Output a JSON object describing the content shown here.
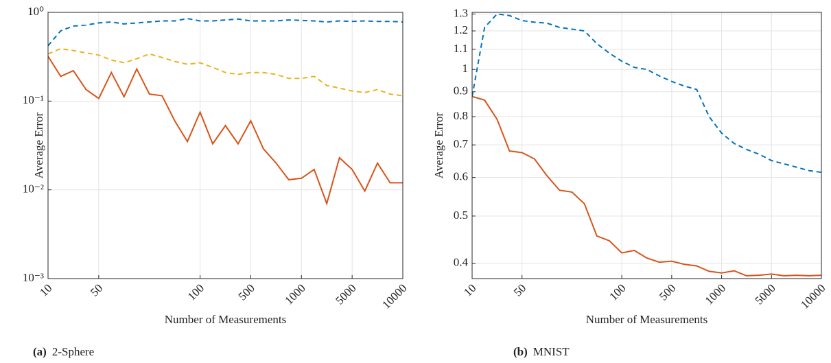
{
  "chart_data": [
    {
      "type": "line",
      "caption_label": "(a)",
      "caption": "2-Sphere",
      "xlabel": "Number of Measurements",
      "ylabel": "Average Error",
      "categories": [
        "10",
        null,
        null,
        null,
        "50",
        null,
        null,
        null,
        null,
        null,
        null,
        null,
        "100",
        null,
        null,
        null,
        "500",
        null,
        null,
        null,
        "1000",
        null,
        null,
        null,
        "5000",
        null,
        null,
        null,
        "10000"
      ],
      "log_y": true,
      "grid": true,
      "ylim": [
        0.001,
        1
      ],
      "yticks": [
        {
          "value": 0.001,
          "label": "10⁻³"
        },
        {
          "value": 0.01,
          "label": "10⁻²"
        },
        {
          "value": 0.1,
          "label": "10⁻¹"
        },
        {
          "value": 1,
          "label": "10⁰"
        }
      ],
      "series": [
        {
          "color": "#0072BD",
          "dashed": true,
          "values": [
            0.42,
            0.62,
            0.7,
            0.72,
            0.76,
            0.78,
            0.74,
            0.76,
            0.78,
            0.8,
            0.8,
            0.85,
            0.8,
            0.8,
            0.82,
            0.84,
            0.8,
            0.8,
            0.8,
            0.82,
            0.81,
            0.8,
            0.78,
            0.8,
            0.79,
            0.8,
            0.79,
            0.79,
            0.78
          ]
        },
        {
          "color": "#EDB120",
          "dashed": true,
          "values": [
            0.34,
            0.39,
            0.37,
            0.35,
            0.33,
            0.29,
            0.27,
            0.3,
            0.34,
            0.31,
            0.28,
            0.26,
            0.27,
            0.24,
            0.21,
            0.2,
            0.21,
            0.21,
            0.2,
            0.18,
            0.18,
            0.19,
            0.15,
            0.14,
            0.13,
            0.125,
            0.135,
            0.12,
            0.115
          ]
        },
        {
          "color": "#D95319",
          "dashed": false,
          "values": [
            0.32,
            0.19,
            0.22,
            0.135,
            0.107,
            0.21,
            0.112,
            0.23,
            0.12,
            0.115,
            0.06,
            0.035,
            0.075,
            0.033,
            0.053,
            0.033,
            0.06,
            0.029,
            0.02,
            0.013,
            0.0135,
            0.017,
            0.007,
            0.023,
            0.017,
            0.0097,
            0.02,
            0.012,
            0.012
          ]
        }
      ]
    },
    {
      "type": "line",
      "caption_label": "(b)",
      "caption": "MNIST",
      "xlabel": "Number of Measurements",
      "ylabel": "Average Error",
      "categories": [
        "10",
        null,
        null,
        null,
        "50",
        null,
        null,
        null,
        null,
        null,
        null,
        null,
        "100",
        null,
        null,
        null,
        "500",
        null,
        null,
        null,
        "1000",
        null,
        null,
        null,
        "5000",
        null,
        null,
        null,
        "10000"
      ],
      "log_y": true,
      "grid": true,
      "ylim": [
        0.372,
        1.31
      ],
      "yticks": [
        0.4,
        0.5,
        0.6,
        0.7,
        0.8,
        0.9,
        1,
        1.1,
        1.2,
        1.3
      ],
      "series": [
        {
          "color": "#0072BD",
          "dashed": true,
          "values": [
            0.88,
            1.22,
            1.3,
            1.29,
            1.26,
            1.25,
            1.245,
            1.22,
            1.21,
            1.2,
            1.13,
            1.08,
            1.04,
            1.01,
            1.0,
            0.97,
            0.945,
            0.925,
            0.91,
            0.8,
            0.74,
            0.705,
            0.685,
            0.67,
            0.65,
            0.64,
            0.63,
            0.62,
            0.615
          ]
        },
        {
          "color": "#D95319",
          "dashed": false,
          "values": [
            0.88,
            0.865,
            0.79,
            0.68,
            0.675,
            0.655,
            0.605,
            0.565,
            0.56,
            0.53,
            0.455,
            0.445,
            0.42,
            0.425,
            0.41,
            0.402,
            0.404,
            0.398,
            0.395,
            0.385,
            0.382,
            0.386,
            0.377,
            0.378,
            0.38,
            0.377,
            0.378,
            0.377,
            0.378
          ]
        }
      ]
    }
  ]
}
